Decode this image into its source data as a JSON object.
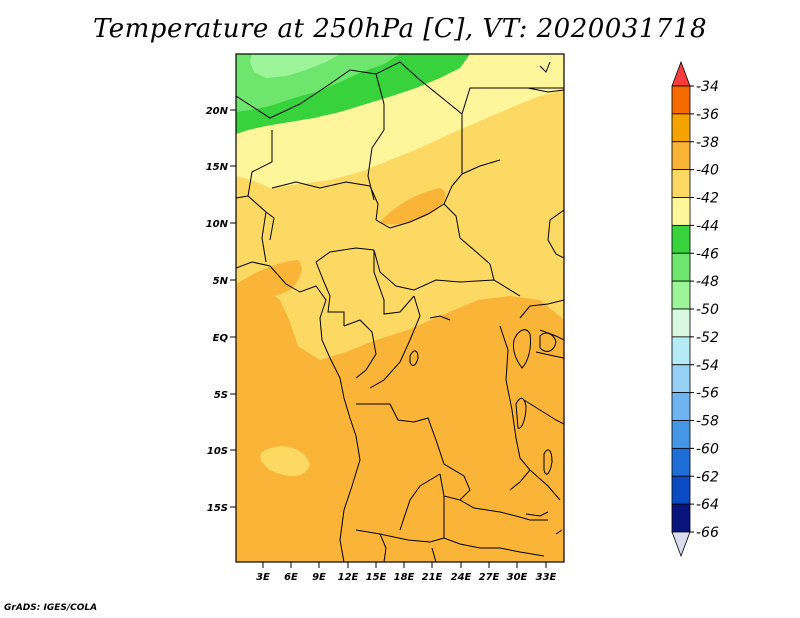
{
  "title": "Temperature at 250hPa [C], VT: 2020031718",
  "credit": "GrADS: IGES/COLA",
  "map": {
    "lat_ticks": [
      "20N",
      "15N",
      "10N",
      "5N",
      "EQ",
      "5S",
      "10S",
      "15S"
    ],
    "lon_ticks": [
      "3E",
      "6E",
      "9E",
      "12E",
      "15E",
      "18E",
      "21E",
      "24E",
      "27E",
      "30E",
      "33E"
    ]
  },
  "colorbar": {
    "labels": [
      "-34",
      "-36",
      "-38",
      "-40",
      "-42",
      "-44",
      "-46",
      "-48",
      "-50",
      "-52",
      "-54",
      "-56",
      "-58",
      "-60",
      "-62",
      "-64",
      "-66"
    ],
    "colors": [
      "#fa3c3c",
      "#f56b00",
      "#f5a300",
      "#fab437",
      "#fbd963",
      "#fff59b",
      "#37d23c",
      "#6ee66e",
      "#9df59a",
      "#d9f8e0",
      "#b4ebf5",
      "#97d0f5",
      "#6eb4f0",
      "#4696e6",
      "#1e6ed7",
      "#0a4bc3",
      "#0a147d",
      "#dcdcf0"
    ]
  }
}
